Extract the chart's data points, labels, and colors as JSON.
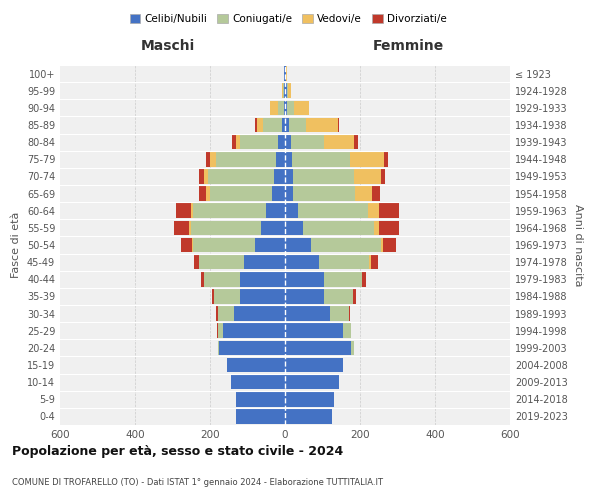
{
  "age_groups": [
    "0-4",
    "5-9",
    "10-14",
    "15-19",
    "20-24",
    "25-29",
    "30-34",
    "35-39",
    "40-44",
    "45-49",
    "50-54",
    "55-59",
    "60-64",
    "65-69",
    "70-74",
    "75-79",
    "80-84",
    "85-89",
    "90-94",
    "95-99",
    "100+"
  ],
  "birth_years": [
    "2019-2023",
    "2014-2018",
    "2009-2013",
    "2004-2008",
    "1999-2003",
    "1994-1998",
    "1989-1993",
    "1984-1988",
    "1979-1983",
    "1974-1978",
    "1969-1973",
    "1964-1968",
    "1959-1963",
    "1954-1958",
    "1949-1953",
    "1944-1948",
    "1939-1943",
    "1934-1938",
    "1929-1933",
    "1924-1928",
    "≤ 1923"
  ],
  "colors": {
    "celibe": "#4472c4",
    "coniugato": "#b5c99a",
    "vedovo": "#f0c060",
    "divorziato": "#c0392b"
  },
  "maschi": {
    "celibe": [
      130,
      130,
      145,
      155,
      175,
      165,
      135,
      120,
      120,
      110,
      80,
      65,
      50,
      35,
      30,
      25,
      20,
      8,
      4,
      3,
      2
    ],
    "coniugato": [
      0,
      0,
      0,
      0,
      5,
      15,
      45,
      70,
      95,
      120,
      165,
      185,
      195,
      165,
      175,
      160,
      100,
      50,
      15,
      3,
      0
    ],
    "vedovo": [
      0,
      0,
      0,
      0,
      0,
      0,
      0,
      0,
      0,
      0,
      3,
      5,
      5,
      10,
      12,
      15,
      12,
      18,
      20,
      3,
      0
    ],
    "divorziato": [
      0,
      0,
      0,
      0,
      0,
      2,
      3,
      5,
      8,
      12,
      30,
      40,
      40,
      20,
      12,
      12,
      10,
      5,
      0,
      0,
      0
    ]
  },
  "femmine": {
    "nubile": [
      125,
      130,
      145,
      155,
      175,
      155,
      120,
      105,
      105,
      90,
      70,
      48,
      35,
      22,
      20,
      18,
      15,
      10,
      5,
      5,
      2
    ],
    "coniugata": [
      0,
      0,
      0,
      0,
      10,
      20,
      50,
      75,
      100,
      135,
      185,
      190,
      185,
      165,
      165,
      155,
      90,
      45,
      20,
      4,
      0
    ],
    "vedova": [
      0,
      0,
      0,
      0,
      0,
      0,
      0,
      0,
      0,
      5,
      6,
      12,
      30,
      45,
      70,
      90,
      80,
      85,
      40,
      8,
      2
    ],
    "divorziata": [
      0,
      0,
      0,
      0,
      0,
      2,
      3,
      8,
      10,
      18,
      35,
      55,
      55,
      20,
      12,
      12,
      10,
      5,
      0,
      0,
      0
    ]
  },
  "title_bold": "Popolazione per età, sesso e stato civile - 2024",
  "subtitle": "COMUNE DI TROFARELLO (TO) - Dati ISTAT 1° gennaio 2024 - Elaborazione TUTTITALIA.IT",
  "xlabel_left": "Maschi",
  "xlabel_right": "Femmine",
  "ylabel_left": "Fasce di età",
  "ylabel_right": "Anni di nascita",
  "xlim": 600,
  "legend_labels": [
    "Celibi/Nubili",
    "Coniugati/e",
    "Vedovi/e",
    "Divorziati/e"
  ],
  "bg_color": "#ffffff",
  "plot_bg": "#f0f0f0"
}
